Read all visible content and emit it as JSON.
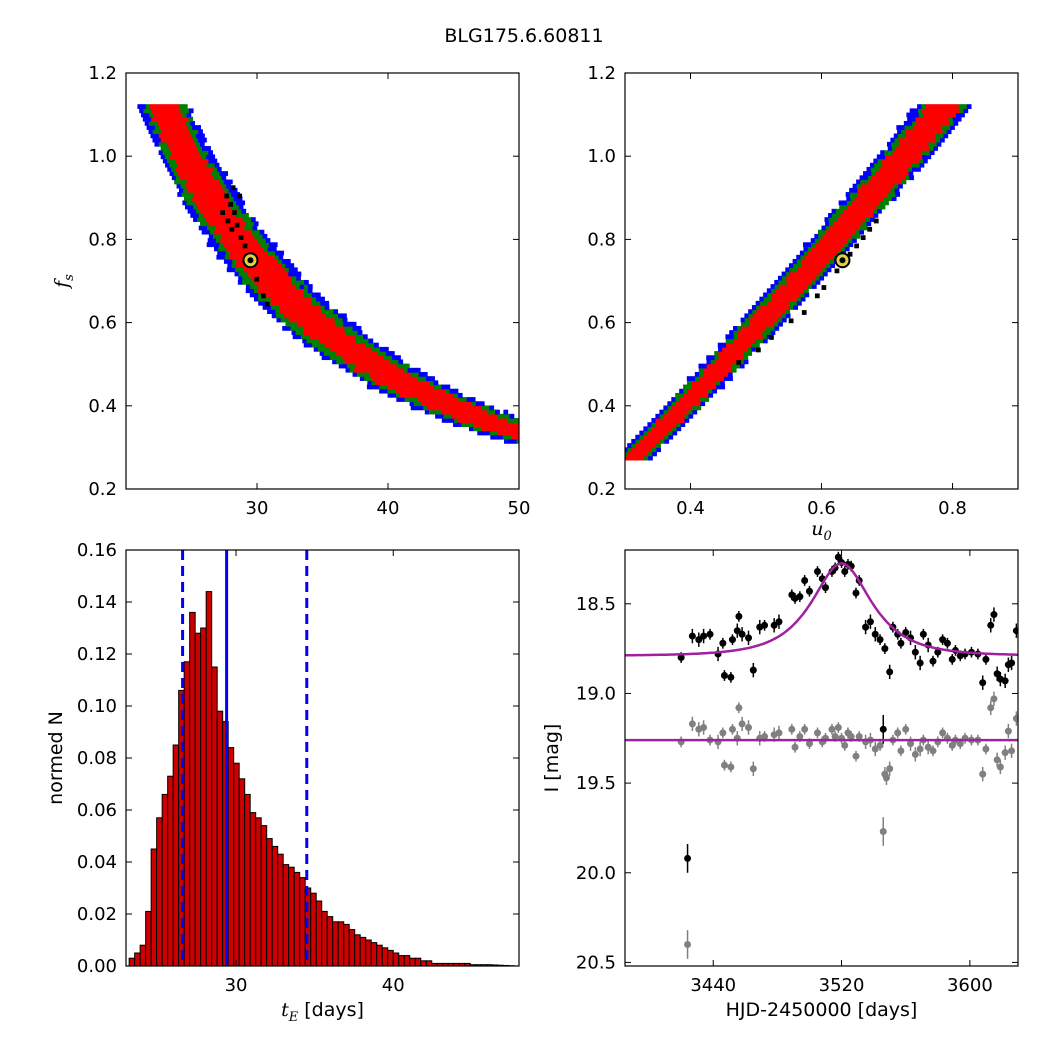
{
  "figure": {
    "title": "BLG175.6.60811"
  },
  "chart_data": [
    {
      "id": "tE-fs",
      "type": "heatmap",
      "xlim": [
        20,
        50
      ],
      "ylim": [
        0.2,
        1.2
      ],
      "xticks": [
        30,
        40,
        50
      ],
      "xtick_labels": [
        "30",
        "40",
        "50"
      ],
      "yticks": [
        0.2,
        0.4,
        0.6,
        0.8,
        1.0,
        1.2
      ],
      "ytick_labels": [
        "0.2",
        "0.4",
        "0.6",
        "0.8",
        "1.0",
        "1.2"
      ],
      "xlabel": "",
      "ylabel": "f",
      "ylabel_sub": "s",
      "confidence_colors": [
        "#0000ff",
        "#008000",
        "#ff0000",
        "#000000"
      ],
      "best_fit": {
        "x": 29.5,
        "y": 0.75
      }
    },
    {
      "id": "u0-fs",
      "type": "heatmap",
      "xlim": [
        0.3,
        0.9
      ],
      "ylim": [
        0.2,
        1.2
      ],
      "xticks": [
        0.4,
        0.6,
        0.8
      ],
      "xtick_labels": [
        "0.4",
        "0.6",
        "0.8"
      ],
      "yticks": [
        0.2,
        0.4,
        0.6,
        0.8,
        1.0,
        1.2
      ],
      "ytick_labels": [
        "0.2",
        "0.4",
        "0.6",
        "0.8",
        "1.0",
        "1.2"
      ],
      "xlabel": "u",
      "xlabel_sub": "0",
      "ylabel": "",
      "confidence_colors": [
        "#0000ff",
        "#008000",
        "#ff0000",
        "#000000"
      ],
      "best_fit": {
        "x": 0.632,
        "y": 0.75
      }
    },
    {
      "id": "tE-hist",
      "type": "bar",
      "xlim": [
        23,
        48
      ],
      "ylim": [
        0,
        0.16
      ],
      "xticks": [
        30,
        40
      ],
      "xtick_labels": [
        "30",
        "40"
      ],
      "yticks": [
        0,
        0.02,
        0.04,
        0.06,
        0.08,
        0.1,
        0.12,
        0.14,
        0.16
      ],
      "ytick_labels": [
        "0.00",
        "0.02",
        "0.04",
        "0.06",
        "0.08",
        "0.10",
        "0.12",
        "0.14",
        "0.16"
      ],
      "xlabel": "t",
      "xlabel_sub": "E",
      "xlabel_suffix": " [days]",
      "ylabel": "normed N",
      "bin_start": 23.2,
      "bin_width": 0.35,
      "values": [
        0.003,
        0.005,
        0.008,
        0.021,
        0.045,
        0.057,
        0.066,
        0.073,
        0.085,
        0.106,
        0.117,
        0.136,
        0.128,
        0.13,
        0.144,
        0.115,
        0.098,
        0.094,
        0.084,
        0.078,
        0.072,
        0.066,
        0.059,
        0.057,
        0.054,
        0.049,
        0.046,
        0.043,
        0.039,
        0.038,
        0.036,
        0.034,
        0.03,
        0.028,
        0.025,
        0.021,
        0.019,
        0.017,
        0.017,
        0.016,
        0.014,
        0.012,
        0.011,
        0.01,
        0.009,
        0.008,
        0.007,
        0.006,
        0.005,
        0.004,
        0.004,
        0.003,
        0.003,
        0.002,
        0.002,
        0.001,
        0.001,
        0.001,
        0.001,
        0.001,
        0.001,
        0.001,
        0.0005,
        0.0005,
        0.0005,
        0.0005,
        0.0004,
        0.0003,
        0.0002,
        0.0001
      ],
      "bar_color": "#cc0000",
      "vlines": [
        {
          "x": 26.6,
          "style": "dashed",
          "color": "#0000ff"
        },
        {
          "x": 29.4,
          "style": "solid",
          "color": "#0000ff"
        },
        {
          "x": 34.5,
          "style": "dashed",
          "color": "#0000ff"
        }
      ]
    },
    {
      "id": "lightcurve",
      "type": "scatter",
      "xlim": [
        3385,
        3630
      ],
      "ylim": [
        20.52,
        18.2
      ],
      "xticks": [
        3440,
        3520,
        3600
      ],
      "xtick_labels": [
        "3440",
        "3520",
        "3600"
      ],
      "yticks": [
        18.5,
        19.0,
        19.5,
        20.0,
        20.5
      ],
      "ytick_labels": [
        "18.5",
        "19.0",
        "19.5",
        "20.0",
        "20.5"
      ],
      "xlabel": "HJD-2450000 [days]",
      "ylabel": "I [mag]",
      "model_color": "#a020a0",
      "model": {
        "t0": 3520,
        "tE": 29.4,
        "u0": 0.632,
        "base_mag": 18.79,
        "fs": 0.75
      },
      "baseline2": 19.26,
      "black_points": [
        [
          3420,
          18.8,
          0.03
        ],
        [
          3427,
          18.68,
          0.04
        ],
        [
          3431,
          18.7,
          0.04
        ],
        [
          3434,
          18.68,
          0.04
        ],
        [
          3438,
          18.67,
          0.03
        ],
        [
          3443,
          18.78,
          0.04
        ],
        [
          3446,
          18.72,
          0.03
        ],
        [
          3447,
          18.9,
          0.03
        ],
        [
          3451,
          18.91,
          0.03
        ],
        [
          3452,
          18.7,
          0.03
        ],
        [
          3455,
          18.65,
          0.04
        ],
        [
          3456,
          18.57,
          0.03
        ],
        [
          3458,
          18.67,
          0.04
        ],
        [
          3462,
          18.69,
          0.04
        ],
        [
          3465,
          18.87,
          0.04
        ],
        [
          3469,
          18.63,
          0.04
        ],
        [
          3472,
          18.62,
          0.03
        ],
        [
          3478,
          18.62,
          0.04
        ],
        [
          3481,
          18.6,
          0.04
        ],
        [
          3489,
          18.45,
          0.03
        ],
        [
          3491,
          18.47,
          0.03
        ],
        [
          3494,
          18.46,
          0.03
        ],
        [
          3497,
          18.37,
          0.03
        ],
        [
          3500,
          18.43,
          0.03
        ],
        [
          3505,
          18.32,
          0.03
        ],
        [
          3508,
          18.36,
          0.03
        ],
        [
          3510,
          18.41,
          0.03
        ],
        [
          3514,
          18.32,
          0.03
        ],
        [
          3516,
          18.3,
          0.03
        ],
        [
          3518,
          18.24,
          0.03
        ],
        [
          3520,
          18.27,
          0.03
        ],
        [
          3522,
          18.32,
          0.03
        ],
        [
          3524,
          18.28,
          0.03
        ],
        [
          3526,
          18.29,
          0.03
        ],
        [
          3529,
          18.44,
          0.03
        ],
        [
          3531,
          18.37,
          0.03
        ],
        [
          3535,
          18.63,
          0.04
        ],
        [
          3538,
          18.6,
          0.04
        ],
        [
          3541,
          18.67,
          0.04
        ],
        [
          3544,
          18.7,
          0.03
        ],
        [
          3547,
          18.75,
          0.03
        ],
        [
          3550,
          18.88,
          0.04
        ],
        [
          3552,
          18.63,
          0.03
        ],
        [
          3555,
          18.67,
          0.03
        ],
        [
          3557,
          18.72,
          0.03
        ],
        [
          3560,
          18.66,
          0.03
        ],
        [
          3563,
          18.69,
          0.04
        ],
        [
          3566,
          18.77,
          0.04
        ],
        [
          3569,
          18.83,
          0.04
        ],
        [
          3571,
          18.67,
          0.03
        ],
        [
          3574,
          18.73,
          0.04
        ],
        [
          3577,
          18.82,
          0.03
        ],
        [
          3580,
          18.77,
          0.03
        ],
        [
          3583,
          18.7,
          0.03
        ],
        [
          3586,
          18.72,
          0.03
        ],
        [
          3589,
          18.81,
          0.03
        ],
        [
          3591,
          18.76,
          0.03
        ],
        [
          3594,
          18.79,
          0.03
        ],
        [
          3597,
          18.78,
          0.03
        ],
        [
          3601,
          18.77,
          0.03
        ],
        [
          3605,
          18.78,
          0.03
        ],
        [
          3608,
          18.94,
          0.04
        ],
        [
          3610,
          18.81,
          0.03
        ],
        [
          3613,
          18.62,
          0.04
        ],
        [
          3615,
          18.56,
          0.04
        ],
        [
          3617,
          18.89,
          0.04
        ],
        [
          3619,
          18.92,
          0.04
        ],
        [
          3622,
          18.93,
          0.04
        ],
        [
          3624,
          18.84,
          0.04
        ],
        [
          3626,
          18.83,
          0.04
        ],
        [
          3629,
          18.65,
          0.04
        ],
        [
          3424,
          19.92,
          0.08
        ],
        [
          3546,
          19.2,
          0.08
        ]
      ],
      "gray_points": [
        [
          3420,
          19.27,
          0.03
        ],
        [
          3427,
          19.17,
          0.04
        ],
        [
          3431,
          19.2,
          0.04
        ],
        [
          3434,
          19.19,
          0.04
        ],
        [
          3438,
          19.26,
          0.03
        ],
        [
          3443,
          19.27,
          0.04
        ],
        [
          3446,
          19.22,
          0.03
        ],
        [
          3447,
          19.4,
          0.03
        ],
        [
          3451,
          19.41,
          0.03
        ],
        [
          3452,
          19.2,
          0.03
        ],
        [
          3455,
          19.25,
          0.04
        ],
        [
          3456,
          19.08,
          0.03
        ],
        [
          3458,
          19.17,
          0.04
        ],
        [
          3462,
          19.19,
          0.04
        ],
        [
          3465,
          19.42,
          0.04
        ],
        [
          3469,
          19.25,
          0.04
        ],
        [
          3472,
          19.24,
          0.03
        ],
        [
          3478,
          19.23,
          0.04
        ],
        [
          3481,
          19.22,
          0.04
        ],
        [
          3489,
          19.2,
          0.03
        ],
        [
          3491,
          19.3,
          0.03
        ],
        [
          3494,
          19.24,
          0.03
        ],
        [
          3497,
          19.2,
          0.03
        ],
        [
          3500,
          19.28,
          0.03
        ],
        [
          3505,
          19.22,
          0.03
        ],
        [
          3508,
          19.27,
          0.03
        ],
        [
          3510,
          19.25,
          0.03
        ],
        [
          3514,
          19.2,
          0.03
        ],
        [
          3516,
          19.24,
          0.03
        ],
        [
          3518,
          19.19,
          0.03
        ],
        [
          3520,
          19.25,
          0.03
        ],
        [
          3522,
          19.29,
          0.03
        ],
        [
          3524,
          19.22,
          0.03
        ],
        [
          3526,
          19.24,
          0.03
        ],
        [
          3529,
          19.35,
          0.03
        ],
        [
          3531,
          19.24,
          0.03
        ],
        [
          3535,
          19.27,
          0.04
        ],
        [
          3538,
          19.26,
          0.04
        ],
        [
          3541,
          19.31,
          0.04
        ],
        [
          3544,
          19.29,
          0.03
        ],
        [
          3547,
          19.45,
          0.04
        ],
        [
          3548,
          19.47,
          0.04
        ],
        [
          3550,
          19.42,
          0.04
        ],
        [
          3552,
          19.26,
          0.03
        ],
        [
          3555,
          19.22,
          0.03
        ],
        [
          3557,
          19.32,
          0.03
        ],
        [
          3560,
          19.2,
          0.03
        ],
        [
          3563,
          19.28,
          0.04
        ],
        [
          3566,
          19.34,
          0.04
        ],
        [
          3569,
          19.31,
          0.04
        ],
        [
          3571,
          19.26,
          0.03
        ],
        [
          3574,
          19.3,
          0.04
        ],
        [
          3577,
          19.32,
          0.03
        ],
        [
          3580,
          19.27,
          0.03
        ],
        [
          3583,
          19.22,
          0.03
        ],
        [
          3586,
          19.25,
          0.03
        ],
        [
          3589,
          19.29,
          0.03
        ],
        [
          3591,
          19.26,
          0.03
        ],
        [
          3594,
          19.28,
          0.03
        ],
        [
          3597,
          19.25,
          0.03
        ],
        [
          3601,
          19.26,
          0.03
        ],
        [
          3605,
          19.26,
          0.03
        ],
        [
          3608,
          19.45,
          0.04
        ],
        [
          3610,
          19.31,
          0.03
        ],
        [
          3613,
          19.08,
          0.04
        ],
        [
          3615,
          19.03,
          0.04
        ],
        [
          3617,
          19.37,
          0.04
        ],
        [
          3619,
          19.41,
          0.04
        ],
        [
          3622,
          19.33,
          0.04
        ],
        [
          3624,
          19.21,
          0.04
        ],
        [
          3626,
          19.32,
          0.04
        ],
        [
          3629,
          19.14,
          0.04
        ],
        [
          3424,
          20.4,
          0.08
        ],
        [
          3546,
          19.77,
          0.08
        ]
      ]
    }
  ]
}
